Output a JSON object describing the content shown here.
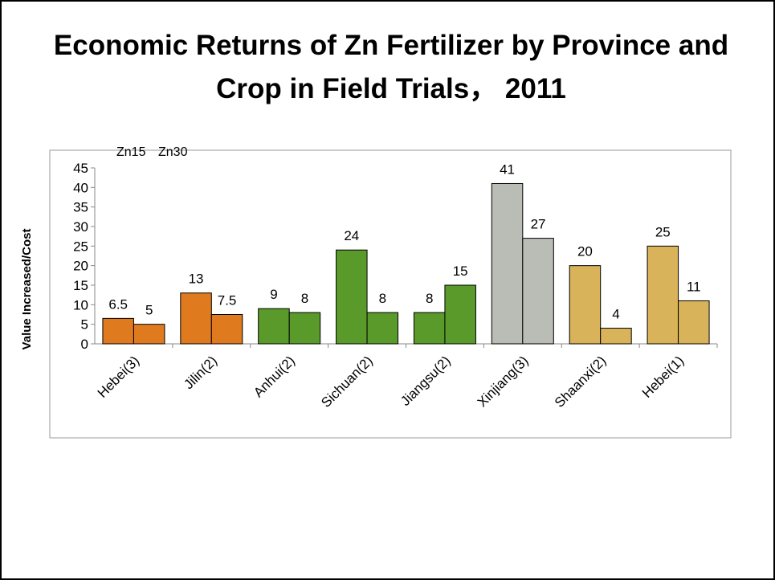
{
  "chart_data": {
    "type": "bar",
    "title": [
      "Economic Returns of Zn Fertilizer by Province and",
      "Crop in Field Trials，  2011"
    ],
    "y_label": "Value Increased/Cost",
    "categories": [
      "Hebei(3)",
      "Jilin(2)",
      "Anhui(2)",
      "Sichuan(2)",
      "Jiangsu(2)",
      "Xinjiang(3)",
      "Shaanxi(2)",
      "Hebei(1)"
    ],
    "category_colors": [
      "#e07a1e",
      "#e07a1e",
      "#5a9a2a",
      "#5a9a2a",
      "#5a9a2a",
      "#b9bdb5",
      "#d9b35a",
      "#d9b35a"
    ],
    "series": [
      {
        "name": "Zn15",
        "values": [
          6.5,
          13,
          9,
          24,
          8,
          41,
          20,
          25
        ]
      },
      {
        "name": "Zn30",
        "values": [
          5,
          7.5,
          8,
          8,
          15,
          27,
          4,
          11
        ]
      }
    ],
    "ylim": [
      0,
      45
    ],
    "yticks": [
      0,
      5,
      10,
      15,
      20,
      25,
      30,
      35,
      40,
      45
    ]
  }
}
